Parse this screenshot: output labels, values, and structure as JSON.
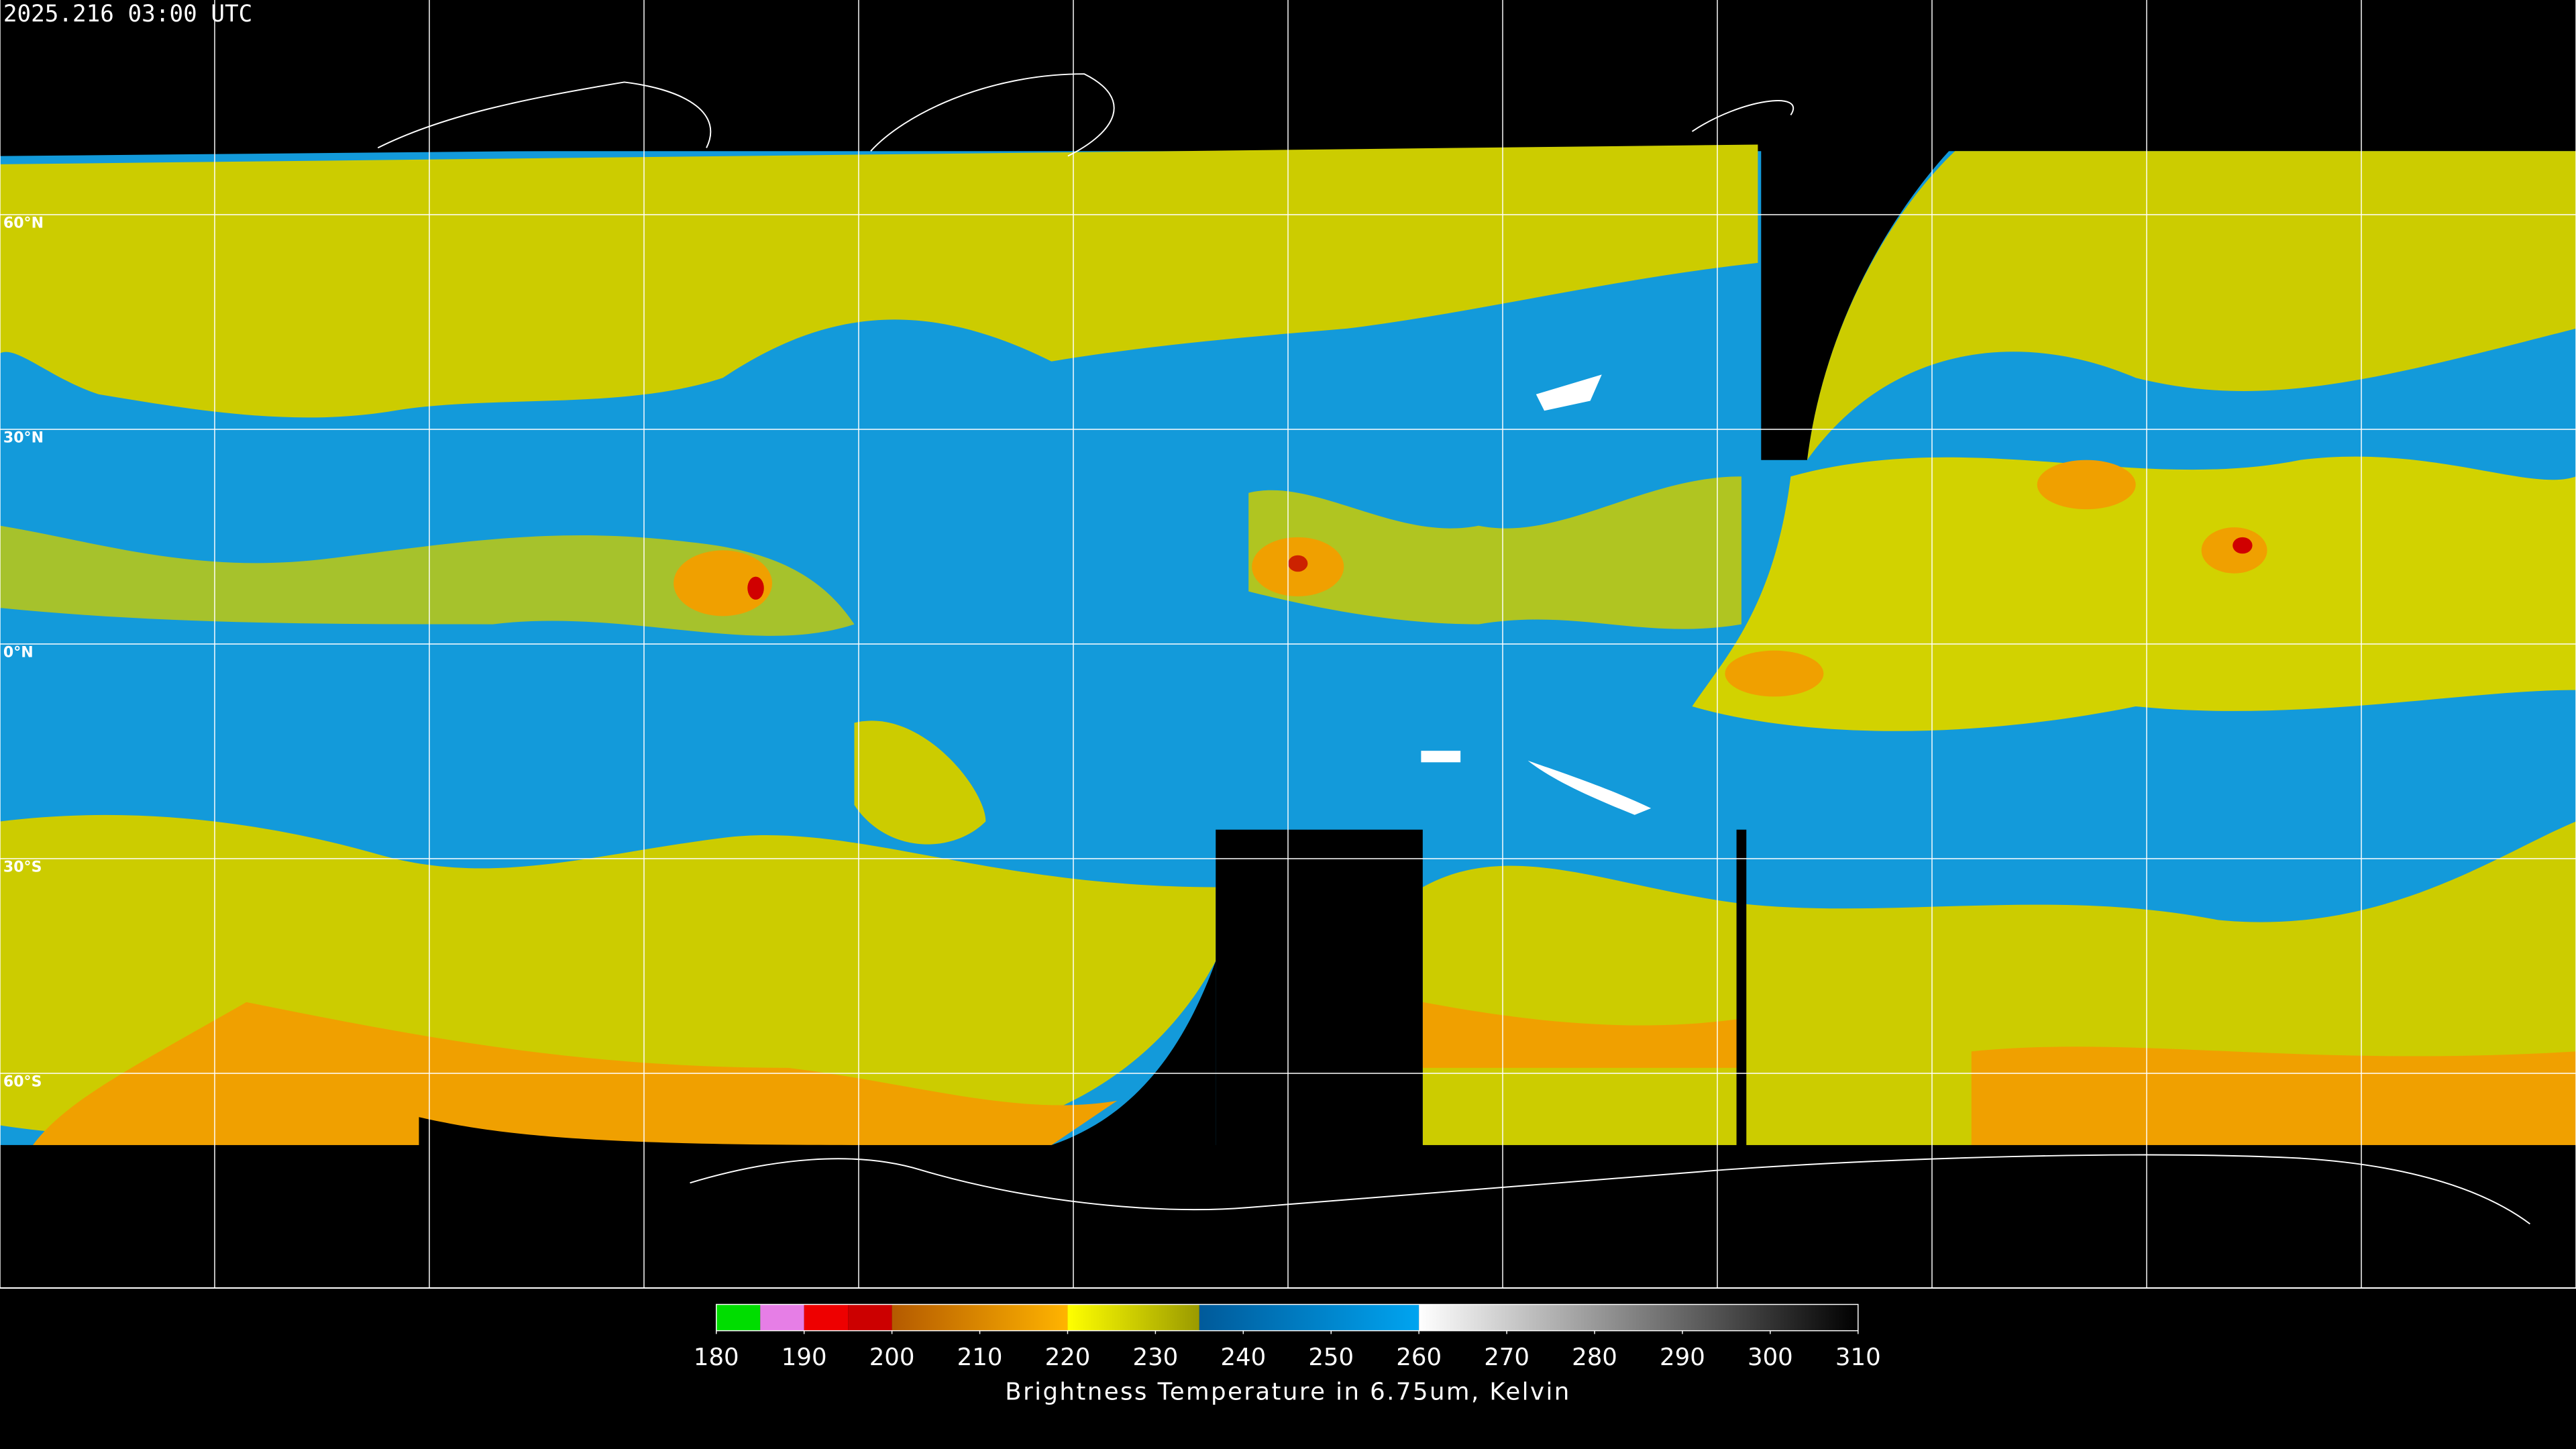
{
  "header": {
    "title": "2025.216 03:00 UTC"
  },
  "latitude_labels": [
    "60°N",
    "30°N",
    "0°N",
    "30°S",
    "60°S"
  ],
  "colorbar": {
    "range": [
      180,
      310
    ],
    "ticks": [
      180,
      190,
      200,
      210,
      220,
      230,
      240,
      250,
      260,
      270,
      280,
      290,
      300,
      310
    ],
    "stops": [
      {
        "from": 180,
        "to": 185,
        "color": "#00dd00",
        "color2": "#00dd00"
      },
      {
        "from": 185,
        "to": 190,
        "color": "#e67ee6",
        "color2": "#e67ee6"
      },
      {
        "from": 190,
        "to": 195,
        "color": "#ee0000",
        "color2": "#ee0000"
      },
      {
        "from": 195,
        "to": 200,
        "color": "#cc0000",
        "color2": "#cc0000"
      },
      {
        "from": 200,
        "to": 220,
        "color": "#b45a00",
        "color2": "#ffb400"
      },
      {
        "from": 220,
        "to": 235,
        "color": "#ffff00",
        "color2": "#9a9a00"
      },
      {
        "from": 235,
        "to": 260,
        "color": "#005a9a",
        "color2": "#00a4f0"
      },
      {
        "from": 260,
        "to": 310,
        "color": "#ffffff",
        "color2": "#000000"
      }
    ],
    "label": "Brightness Temperature in 6.75um, Kelvin"
  }
}
